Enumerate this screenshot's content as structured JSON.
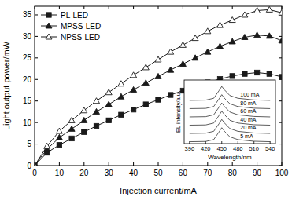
{
  "chart_data": [
    {
      "type": "line",
      "x_label": "Injection current/mA",
      "y_label": "Light output power/mW",
      "x": [
        0,
        5,
        10,
        15,
        20,
        25,
        30,
        35,
        40,
        45,
        50,
        55,
        60,
        65,
        70,
        75,
        80,
        85,
        90,
        95,
        100
      ],
      "series": [
        {
          "name": "PL-LED",
          "color": "#1a1a1a",
          "marker": "square",
          "values": [
            0,
            3.0,
            4.8,
            6.3,
            7.8,
            9.2,
            10.5,
            11.8,
            13.0,
            14.2,
            15.3,
            16.4,
            17.4,
            18.4,
            19.3,
            20.1,
            20.8,
            21.3,
            21.6,
            21.3,
            20.6
          ]
        },
        {
          "name": "MPSS-LED",
          "color": "#1a1a1a",
          "marker": "triangle",
          "values": [
            0,
            3.8,
            6.5,
            8.5,
            10.5,
            12.5,
            14.2,
            16.0,
            17.6,
            19.2,
            20.7,
            22.2,
            23.6,
            25.0,
            26.4,
            27.7,
            28.8,
            29.8,
            30.3,
            30.1,
            29.0
          ]
        },
        {
          "name": "NPSS-LED",
          "color": "#1a1a1a",
          "marker": "triangle-open",
          "values": [
            0,
            4.5,
            8.0,
            10.5,
            12.8,
            15.0,
            17.0,
            19.0,
            21.0,
            22.8,
            24.6,
            26.4,
            28.0,
            29.6,
            31.2,
            32.6,
            33.8,
            35.0,
            36.0,
            36.2,
            35.5
          ]
        }
      ],
      "xlim": [
        0,
        100
      ],
      "xticks": [
        0,
        10,
        20,
        30,
        40,
        50,
        60,
        70,
        80,
        90,
        100
      ],
      "ylim": [
        0,
        37
      ],
      "yticks": [
        0,
        5,
        10,
        15,
        20,
        25,
        30,
        35
      ],
      "legend": "top-left"
    },
    {
      "type": "line",
      "x_label": "Wavelength/nm",
      "y_label": "EL intensity/a.u.",
      "x": [
        390,
        420,
        435,
        445,
        450,
        455,
        465,
        480,
        510,
        540
      ],
      "series": [
        {
          "name": "5 mA",
          "color": "#333333",
          "values": [
            0.3,
            0.34,
            0.63,
            1.84,
            2.5,
            1.95,
            1.07,
            0.63,
            0.37,
            0.3
          ]
        },
        {
          "name": "20 mA",
          "color": "#333333",
          "values": [
            1.6,
            1.64,
            1.93,
            3.14,
            3.8,
            3.25,
            2.37,
            1.93,
            1.67,
            1.6
          ]
        },
        {
          "name": "40 mA",
          "color": "#333333",
          "values": [
            2.9,
            2.94,
            3.23,
            4.44,
            5.1,
            4.55,
            3.67,
            3.23,
            2.97,
            2.9
          ]
        },
        {
          "name": "60 mA",
          "color": "#333333",
          "values": [
            4.2,
            4.24,
            4.53,
            5.74,
            6.4,
            5.85,
            4.97,
            4.53,
            4.27,
            4.2
          ]
        },
        {
          "name": "80 mA",
          "color": "#333333",
          "values": [
            5.5,
            5.54,
            5.83,
            7.04,
            7.7,
            7.15,
            6.27,
            5.83,
            5.57,
            5.5
          ]
        },
        {
          "name": "100 mA",
          "color": "#333333",
          "values": [
            6.8,
            6.84,
            7.13,
            8.34,
            9.0,
            8.45,
            7.57,
            7.13,
            6.87,
            6.8
          ]
        }
      ],
      "xlim": [
        380,
        550
      ],
      "xticks": [
        390,
        420,
        450,
        480,
        510,
        540
      ],
      "ylim": [
        0,
        10
      ],
      "tick_labels": "x"
    }
  ]
}
